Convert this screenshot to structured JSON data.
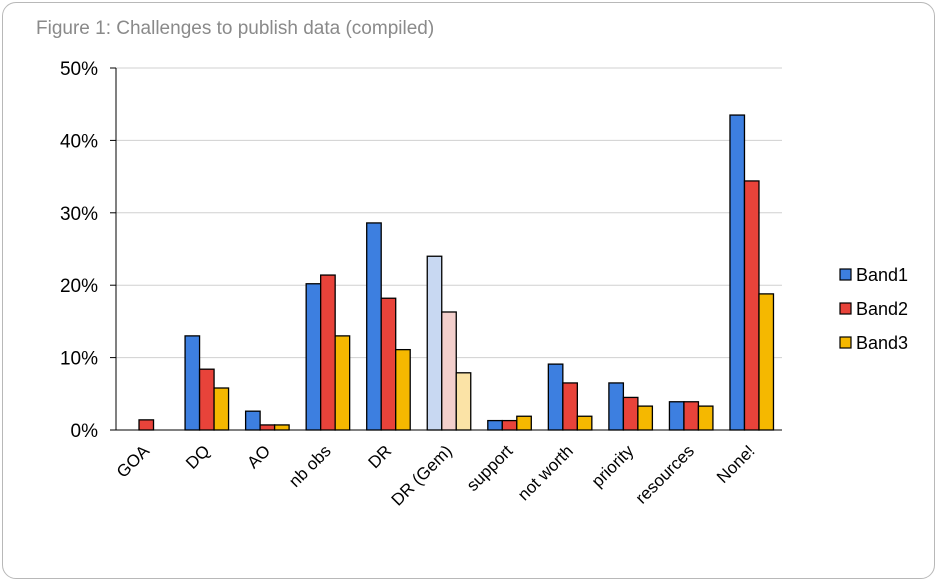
{
  "figure_title": "Figure 1: Challenges to publish data (compiled)",
  "chart_data": {
    "type": "bar",
    "title": "",
    "xlabel": "",
    "ylabel": "",
    "ylim": [
      0,
      50
    ],
    "yticks": [
      "0%",
      "10%",
      "20%",
      "30%",
      "40%",
      "50%"
    ],
    "grid": true,
    "legend_position": "right",
    "categories": [
      "GOA",
      "DQ",
      "AO",
      "nb obs",
      "DR",
      "DR (Gem)",
      "support",
      "not worth",
      "priority",
      "resources",
      "None!"
    ],
    "faded_categories": [
      "DR (Gem)"
    ],
    "series": [
      {
        "name": "Band1",
        "color": "#3d7fe0",
        "faded_color": "#c8d8f2",
        "values": [
          0,
          13.0,
          2.6,
          20.2,
          28.6,
          24.0,
          1.3,
          9.1,
          6.5,
          3.9,
          43.5
        ]
      },
      {
        "name": "Band2",
        "color": "#e8433a",
        "faded_color": "#f3cfcc",
        "values": [
          1.4,
          8.4,
          0.7,
          21.4,
          18.2,
          16.3,
          1.3,
          6.5,
          4.5,
          3.9,
          34.4
        ]
      },
      {
        "name": "Band3",
        "color": "#f5b800",
        "faded_color": "#fbe3a6",
        "values": [
          0,
          5.8,
          0.7,
          13.0,
          11.1,
          7.9,
          1.9,
          1.9,
          3.3,
          3.3,
          18.8
        ]
      }
    ]
  }
}
